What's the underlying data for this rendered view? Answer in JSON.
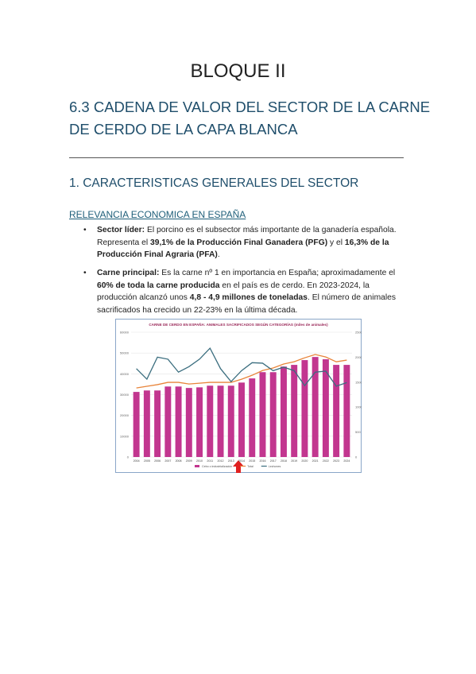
{
  "header": {
    "title": "BLOQUE II"
  },
  "heading": {
    "lines": [
      "6.3 CADENA DE VALOR DEL SECTOR DE LA CARNE",
      "DE CERDO DE LA CAPA BLANCA"
    ]
  },
  "section": {
    "title": "1. CARACTERISTICAS GENERALES DEL SECTOR",
    "subtitle": "RELEVANCIA ECONOMICA EN ESPAÑA"
  },
  "bullets": [
    {
      "parts": [
        {
          "text": "Sector líder:",
          "bold": true
        },
        {
          "text": " El porcino es el subsector más importante de la ganadería española. Representa el ",
          "bold": false
        },
        {
          "text": "39,1% de la Producción Final Ganadera (PFG)",
          "bold": true
        },
        {
          "text": " y el ",
          "bold": false
        },
        {
          "text": "16,3% de la Producción Final Agraria (PFA)",
          "bold": true
        },
        {
          "text": ".",
          "bold": false
        }
      ]
    },
    {
      "parts": [
        {
          "text": "Carne principal:",
          "bold": true
        },
        {
          "text": " Es la carne nº 1 en importancia en España; aproximadamente el ",
          "bold": false
        },
        {
          "text": "60% de toda la carne producida",
          "bold": true
        },
        {
          "text": " en el país es de cerdo. En 2023-2024, la producción alcanzó unos ",
          "bold": false
        },
        {
          "text": "4,8 - 4,9 millones de toneladas",
          "bold": true
        },
        {
          "text": ". El número de animales sacrificados ha crecido un 22-23% en la última década.",
          "bold": false
        }
      ]
    }
  ],
  "chart_data": {
    "type": "bar",
    "title": "CARNE DE CERDO EN ESPAÑA: ANIMALES SACRIFICADOS SEGÚN CATEGORÍAS (miles de animales)",
    "categories": [
      "2004",
      "2005",
      "2006",
      "2007",
      "2008",
      "2009",
      "2010",
      "2011",
      "2012",
      "2013",
      "2014",
      "2015",
      "2016",
      "2017",
      "2018",
      "2019",
      "2020",
      "2021",
      "2022",
      "2023",
      "2024"
    ],
    "ylim": [
      0,
      60000
    ],
    "yticks": [
      0,
      10000,
      20000,
      30000,
      40000,
      50000,
      60000
    ],
    "y2lim": [
      0,
      2500
    ],
    "y2ticks": [
      0,
      500,
      1000,
      1500,
      2000,
      2500
    ],
    "grid": true,
    "series": [
      {
        "name": "Cebo o industrialización",
        "type": "bar",
        "color": "#c2368f",
        "values": [
          31300,
          32000,
          32000,
          33900,
          33900,
          33200,
          33500,
          34300,
          34300,
          34300,
          35800,
          37800,
          40800,
          40800,
          43500,
          44300,
          46600,
          48100,
          47000,
          44300,
          44300
        ]
      },
      {
        "name": "Total",
        "type": "line",
        "color": "#e8843a",
        "values": [
          33200,
          34000,
          34800,
          35900,
          35900,
          35100,
          35500,
          35900,
          35900,
          35900,
          37400,
          39300,
          41600,
          42800,
          44700,
          45800,
          47700,
          49300,
          48100,
          45800,
          46600
        ]
      },
      {
        "name": "Lechones",
        "type": "line",
        "axis": "y2",
        "color": "#3b6e7f",
        "values": [
          1770,
          1560,
          2000,
          1960,
          1700,
          1810,
          1960,
          2180,
          1770,
          1510,
          1730,
          1890,
          1880,
          1730,
          1800,
          1730,
          1430,
          1700,
          1720,
          1420,
          1490
        ]
      }
    ]
  }
}
